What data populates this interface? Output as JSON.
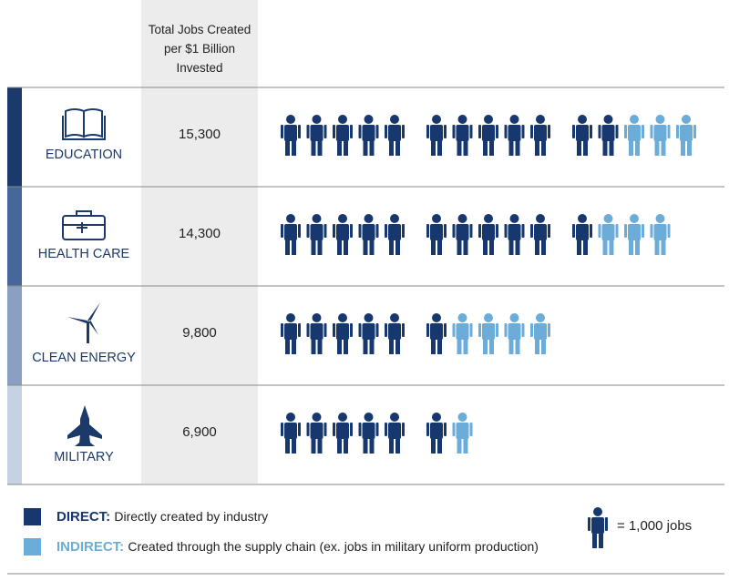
{
  "chart_data": {
    "type": "pictogram",
    "column_header": "Total Jobs Created per $1 Billion Invested",
    "categories": [
      "EDUCATION",
      "HEALTH CARE",
      "CLEAN ENERGY",
      "MILITARY"
    ],
    "category_colors": [
      "#1b3a6b",
      "#46679a",
      "#8a9fc2",
      "#c6d1e2"
    ],
    "totals": {
      "values": [
        15300,
        14300,
        9800,
        6900
      ],
      "value_labels": [
        "15,300",
        "14,300",
        "9,800",
        "6,900"
      ]
    },
    "series": [
      {
        "name": "DIRECT:",
        "description": "Directly created by industry",
        "color": "#17386f",
        "values": [
          12,
          11,
          6,
          6
        ]
      },
      {
        "name": "INDIRECT:",
        "description": "Created through the supply chain (ex. jobs in military uniform production)",
        "color": "#6badd8",
        "values": [
          3,
          3,
          4,
          1
        ]
      }
    ],
    "icon_key": "1,000 jobs"
  }
}
